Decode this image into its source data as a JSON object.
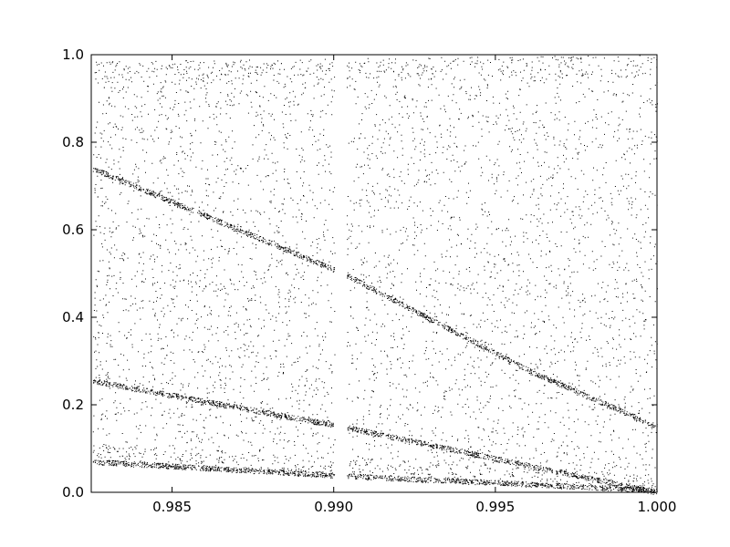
{
  "chart_data": {
    "type": "scatter",
    "title": "",
    "xlabel": "",
    "ylabel": "",
    "xlim": [
      0.9825,
      1.0
    ],
    "ylim": [
      0.0,
      1.0
    ],
    "grid": false,
    "marker_color": "#000000",
    "x_ticks": [
      {
        "value": 0.985,
        "label": "0.985"
      },
      {
        "value": 0.99,
        "label": "0.990"
      },
      {
        "value": 0.995,
        "label": "0.995"
      },
      {
        "value": 1.0,
        "label": "1.000"
      }
    ],
    "y_ticks": [
      {
        "value": 0.0,
        "label": "0.0"
      },
      {
        "value": 0.2,
        "label": "0.2"
      },
      {
        "value": 0.4,
        "label": "0.4"
      },
      {
        "value": 0.6,
        "label": "0.6"
      },
      {
        "value": 0.8,
        "label": "0.8"
      },
      {
        "value": 1.0,
        "label": "1.0"
      }
    ],
    "chaotic_band": {
      "x_start": 0.98255,
      "x_end": 1.0,
      "lower_edge": [
        [
          0.98255,
          0.072
        ],
        [
          1.0,
          0.0
        ]
      ],
      "upper_edge": [
        [
          0.98255,
          0.985
        ],
        [
          1.0,
          1.0
        ]
      ]
    },
    "periodic_window": {
      "x_start": 0.99003,
      "x_end": 0.9904
    },
    "dense_lines": [
      {
        "points": [
          [
            0.98255,
            0.255
          ],
          [
            0.9903,
            0.15
          ],
          [
            1.0,
            0.0
          ]
        ]
      },
      {
        "points": [
          [
            0.98255,
            0.74
          ],
          [
            0.9903,
            0.5
          ],
          [
            0.996,
            0.28
          ],
          [
            1.0,
            0.15
          ]
        ]
      },
      {
        "points": [
          [
            0.98255,
            0.07
          ],
          [
            0.9903,
            0.038
          ],
          [
            1.0,
            0.005
          ]
        ]
      }
    ]
  }
}
